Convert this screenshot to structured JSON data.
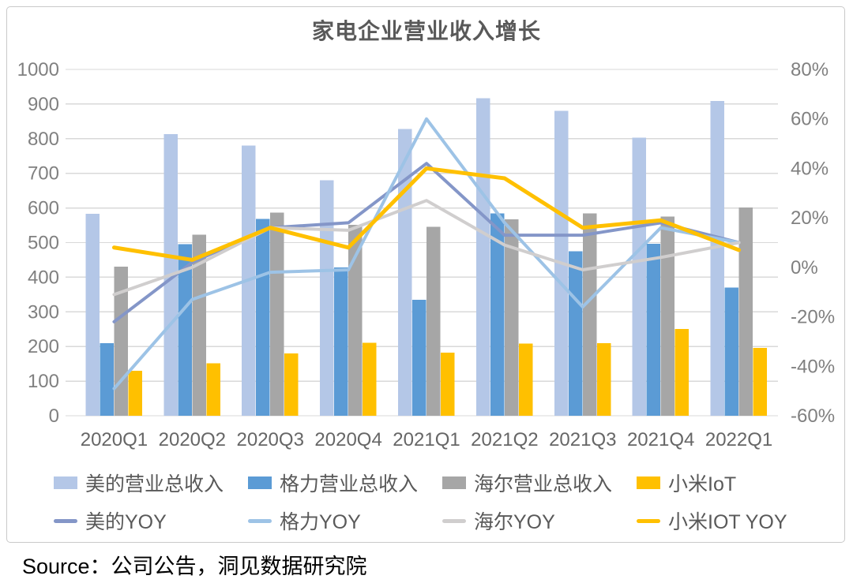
{
  "title": "家电企业营业收入增长",
  "source_note": "Source：公司公告，洞见数据研究院",
  "chart_data": {
    "type": "combo-bar-line",
    "title": "家电企业营业收入增长",
    "categories": [
      "2020Q1",
      "2020Q2",
      "2020Q3",
      "2020Q4",
      "2021Q1",
      "2021Q2",
      "2021Q3",
      "2021Q4",
      "2022Q1"
    ],
    "left_axis": {
      "min": 0,
      "max": 1000,
      "step": 100,
      "tick_labels": [
        "0",
        "100",
        "200",
        "300",
        "400",
        "500",
        "600",
        "700",
        "800",
        "900",
        "1000"
      ]
    },
    "right_axis": {
      "min": -60,
      "max": 80,
      "step": 20,
      "tick_labels": [
        "-60%",
        "-40%",
        "-20%",
        "0%",
        "20%",
        "40%",
        "60%",
        "80%"
      ]
    },
    "bar_series": [
      {
        "name": "美的营业总收入",
        "color": "#b4c7e7",
        "values": [
          583,
          813,
          780,
          680,
          828,
          917,
          880,
          803,
          909
        ]
      },
      {
        "name": "格力营业总收入",
        "color": "#5b9bd5",
        "values": [
          209,
          495,
          568,
          428,
          335,
          584,
          475,
          497,
          370
        ]
      },
      {
        "name": "海尔营业总收入",
        "color": "#a6a6a6",
        "values": [
          431,
          523,
          587,
          551,
          546,
          567,
          584,
          575,
          601
        ]
      },
      {
        "name": "小米IoT",
        "color": "#ffc000",
        "values": [
          130,
          152,
          180,
          211,
          182,
          208,
          210,
          251,
          196
        ]
      }
    ],
    "line_series": [
      {
        "name": "美的YOY",
        "color": "#8496c8",
        "values_pct": [
          -22,
          2,
          16,
          18,
          42,
          13,
          13,
          18,
          10
        ]
      },
      {
        "name": "格力YOY",
        "color": "#9dc3e6",
        "values_pct": [
          -49,
          -13,
          -2,
          -1,
          60,
          18,
          -16,
          16,
          10
        ]
      },
      {
        "name": "海尔YOY",
        "color": "#d0cece",
        "values_pct": [
          -11,
          0,
          16,
          15,
          27,
          9,
          -1,
          4,
          10
        ]
      },
      {
        "name": "小米IOT YOY",
        "color": "#ffc000",
        "values_pct": [
          8,
          3,
          16,
          8,
          40,
          36,
          16,
          19,
          7
        ]
      }
    ],
    "grid": true,
    "legend_position": "bottom",
    "colors": {
      "gridline": "#d9d9d9",
      "axis_text": "#808080",
      "x_axis_text": "#666666",
      "title_text": "#595959",
      "legend_text": "#595959"
    }
  }
}
